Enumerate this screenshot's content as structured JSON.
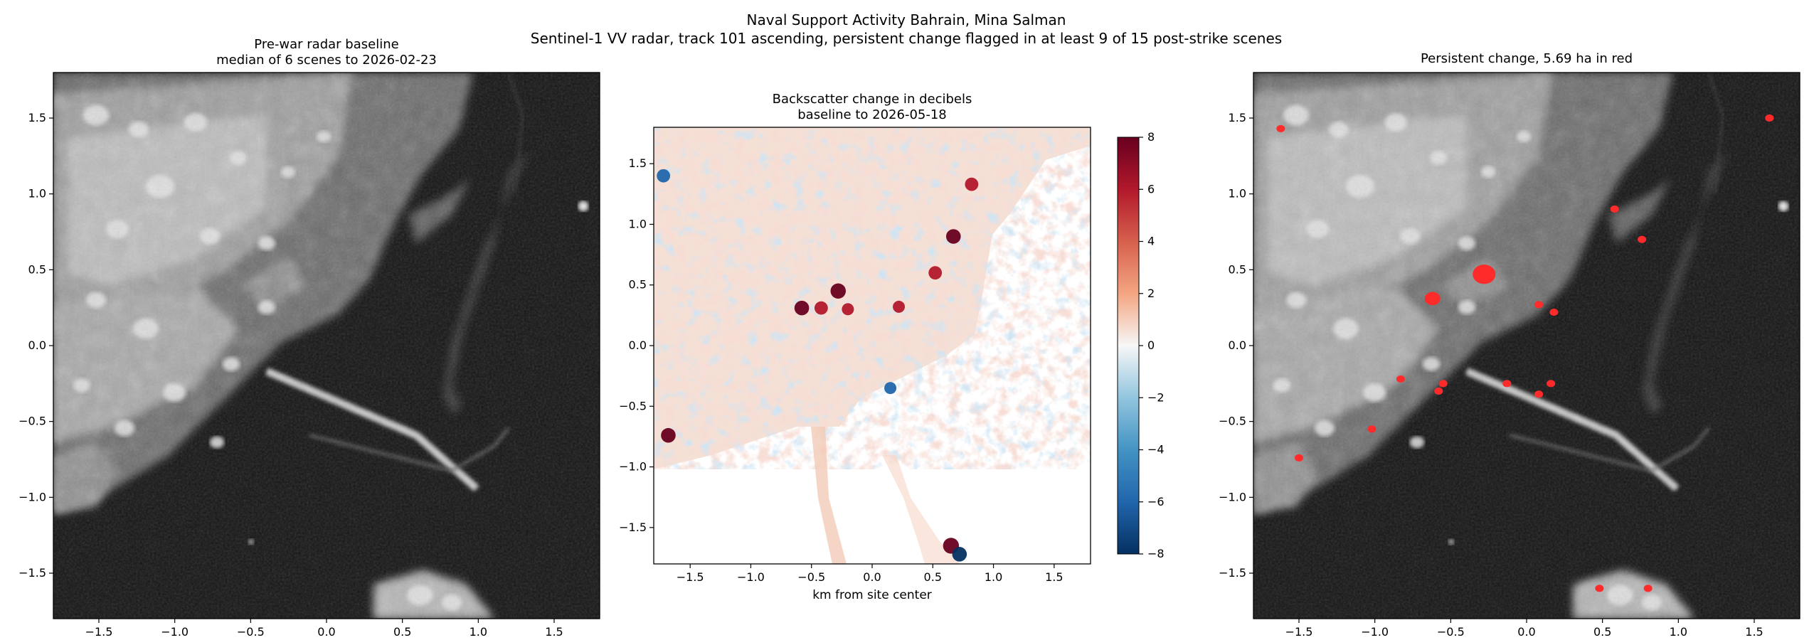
{
  "suptitle": {
    "line1": "Naval Support Activity Bahrain, Mina Salman",
    "line2": "Sentinel-1 VV radar, track 101 ascending, persistent change flagged in at least 9 of 15 post-strike scenes"
  },
  "panels": {
    "left": {
      "title1": "Pre-war radar baseline",
      "title2": "median of 6 scenes to 2026-02-23"
    },
    "middle": {
      "title1": "Backscatter change in decibels",
      "title2": "baseline to 2026-05-18",
      "xlabel": "km from site center"
    },
    "right": {
      "title1": "Persistent change, 5.69 ha in red"
    }
  },
  "chart_data": [
    {
      "type": "heatmap",
      "name": "Pre-war radar baseline",
      "xlim": [
        -1.8,
        1.8
      ],
      "ylim": [
        -1.8,
        1.8
      ],
      "xticks": [
        -1.5,
        -1.0,
        -0.5,
        0.0,
        0.5,
        1.0,
        1.5
      ],
      "yticks": [
        -1.5,
        -1.0,
        -0.5,
        0.0,
        0.5,
        1.0,
        1.5
      ],
      "colormap": "gray"
    },
    {
      "type": "heatmap",
      "name": "Backscatter change",
      "xlim": [
        -1.8,
        1.8
      ],
      "ylim": [
        -1.8,
        1.8
      ],
      "xticks": [
        -1.5,
        -1.0,
        -0.5,
        0.0,
        0.5,
        1.0,
        1.5
      ],
      "yticks": [
        -1.5,
        -1.0,
        -0.5,
        0.0,
        0.5,
        1.0,
        1.5
      ],
      "colormap": "RdBu_r",
      "colorbar": {
        "range": [
          -8,
          8
        ],
        "ticks": [
          -8,
          -6,
          -4,
          -2,
          0,
          2,
          4,
          6,
          8
        ]
      },
      "hotspots_db": [
        {
          "x": -0.28,
          "y": 0.45,
          "value": 7.5
        },
        {
          "x": -0.58,
          "y": 0.31,
          "value": 7.0
        },
        {
          "x": -0.42,
          "y": 0.31,
          "value": 6.0
        },
        {
          "x": -0.2,
          "y": 0.3,
          "value": 5.0
        },
        {
          "x": 0.67,
          "y": 0.9,
          "value": 7.0
        },
        {
          "x": 0.82,
          "y": 1.33,
          "value": 6.0
        },
        {
          "x": 0.52,
          "y": 0.6,
          "value": 6.0
        },
        {
          "x": 0.22,
          "y": 0.32,
          "value": 5.0
        },
        {
          "x": -1.68,
          "y": -0.74,
          "value": 7.0
        },
        {
          "x": 0.65,
          "y": -1.65,
          "value": 8.0
        },
        {
          "x": -1.72,
          "y": 1.4,
          "value": -6.0
        },
        {
          "x": 0.72,
          "y": -1.72,
          "value": -7.0
        },
        {
          "x": 0.15,
          "y": -0.35,
          "value": -5.0
        }
      ]
    },
    {
      "type": "heatmap",
      "name": "Persistent change",
      "xlim": [
        -1.8,
        1.8
      ],
      "ylim": [
        -1.8,
        1.8
      ],
      "xticks": [
        -1.5,
        -1.0,
        -0.5,
        0.0,
        0.5,
        1.0,
        1.5
      ],
      "yticks": [
        -1.5,
        -1.0,
        -0.5,
        0.0,
        0.5,
        1.0,
        1.5
      ],
      "colormap": "gray",
      "change_area_ha": 5.69,
      "overlay_color": "#ff2a2a",
      "flagged_patches": [
        {
          "x": -0.28,
          "y": 0.47
        },
        {
          "x": -0.62,
          "y": 0.31
        },
        {
          "x": -1.62,
          "y": 1.43
        },
        {
          "x": 1.6,
          "y": 1.5
        },
        {
          "x": 0.58,
          "y": 0.9
        },
        {
          "x": 0.76,
          "y": 0.7
        },
        {
          "x": 0.08,
          "y": 0.27
        },
        {
          "x": 0.18,
          "y": 0.22
        },
        {
          "x": -0.83,
          "y": -0.22
        },
        {
          "x": -0.55,
          "y": -0.25
        },
        {
          "x": -0.58,
          "y": -0.3
        },
        {
          "x": -1.02,
          "y": -0.55
        },
        {
          "x": -1.5,
          "y": -0.74
        },
        {
          "x": -0.13,
          "y": -0.25
        },
        {
          "x": 0.16,
          "y": -0.25
        },
        {
          "x": 0.08,
          "y": -0.32
        },
        {
          "x": 0.48,
          "y": -1.6
        },
        {
          "x": 0.8,
          "y": -1.6
        }
      ]
    }
  ],
  "colors": {
    "background": "#ffffff",
    "overlay_red": "#ff2a2a",
    "cmap_low": "#053061",
    "cmap_mid": "#f7f7f7",
    "cmap_high": "#67001f"
  }
}
